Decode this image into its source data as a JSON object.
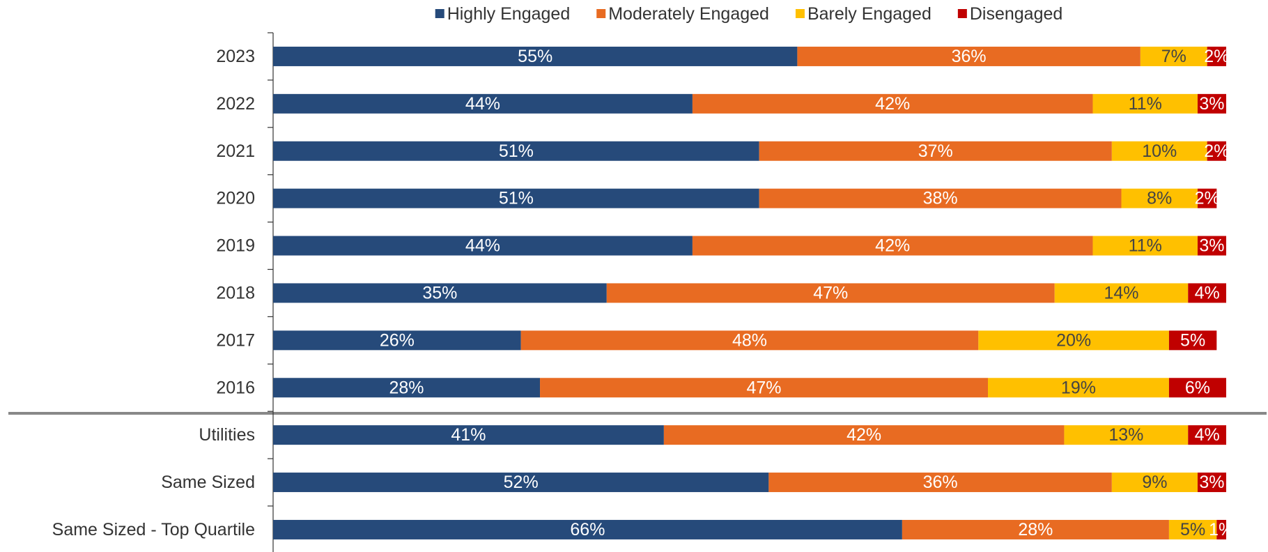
{
  "chart_data": {
    "type": "bar",
    "orientation": "horizontal",
    "stacked": true,
    "categories": [
      "2023",
      "2022",
      "2021",
      "2020",
      "2019",
      "2018",
      "2017",
      "2016",
      "Utilities",
      "Same Sized",
      "Same Sized - Top Quartile"
    ],
    "series": [
      {
        "name": "Highly Engaged",
        "color": "#264a7a",
        "values": [
          55,
          44,
          51,
          51,
          44,
          35,
          26,
          28,
          41,
          52,
          66
        ],
        "value_labels": [
          "55%",
          "44%",
          "51%",
          "51%",
          "44%",
          "35%",
          "26%",
          "28%",
          "41%",
          "52%",
          "66%"
        ]
      },
      {
        "name": "Moderately Engaged",
        "color": "#e86b22",
        "values": [
          36,
          42,
          37,
          38,
          42,
          47,
          48,
          47,
          42,
          36,
          28
        ],
        "value_labels": [
          "36%",
          "42%",
          "37%",
          "38%",
          "42%",
          "47%",
          "48%",
          "47%",
          "42%",
          "36%",
          "28%"
        ]
      },
      {
        "name": "Barely Engaged",
        "color": "#ffc000",
        "values": [
          7,
          11,
          10,
          8,
          11,
          14,
          20,
          19,
          13,
          9,
          5
        ],
        "value_labels": [
          "7%",
          "11%",
          "10%",
          "8%",
          "11%",
          "14%",
          "20%",
          "19%",
          "13%",
          "9%",
          "5%"
        ]
      },
      {
        "name": "Disengaged",
        "color": "#c00000",
        "values": [
          2,
          3,
          2,
          2,
          3,
          4,
          5,
          6,
          4,
          3,
          1
        ],
        "value_labels": [
          "2%",
          "3%",
          "2%",
          "2%",
          "3%",
          "4%",
          "5%",
          "6%",
          "4%",
          "3%",
          "1%"
        ]
      }
    ],
    "xlim": [
      0,
      100
    ],
    "legend": "top"
  }
}
